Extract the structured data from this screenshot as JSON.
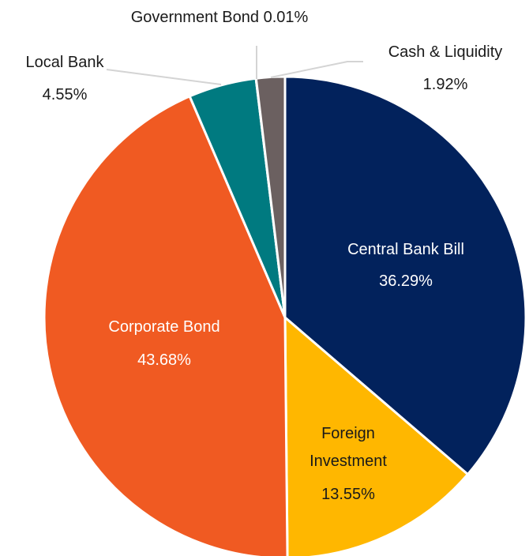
{
  "chart_data": {
    "type": "pie",
    "title": "",
    "start_angle_deg": 0,
    "direction": "clockwise",
    "slices": [
      {
        "name": "Central Bank Bill",
        "value": 36.29,
        "label": "36.29%",
        "color": "#02225c"
      },
      {
        "name": "Foreign Investment",
        "value": 13.55,
        "label": "13.55%",
        "color": "#ffb700"
      },
      {
        "name": "Corporate Bond",
        "value": 43.68,
        "label": "43.68%",
        "color": "#f05a22"
      },
      {
        "name": "Local Bank",
        "value": 4.55,
        "label": "4.55%",
        "color": "#007a80"
      },
      {
        "name": "Government Bond",
        "value": 0.01,
        "label": "0.01%",
        "color": "#a8a8a8"
      },
      {
        "name": "Cash & Liquidity",
        "value": 1.92,
        "label": "1.92%",
        "color": "#6b6060"
      }
    ]
  }
}
